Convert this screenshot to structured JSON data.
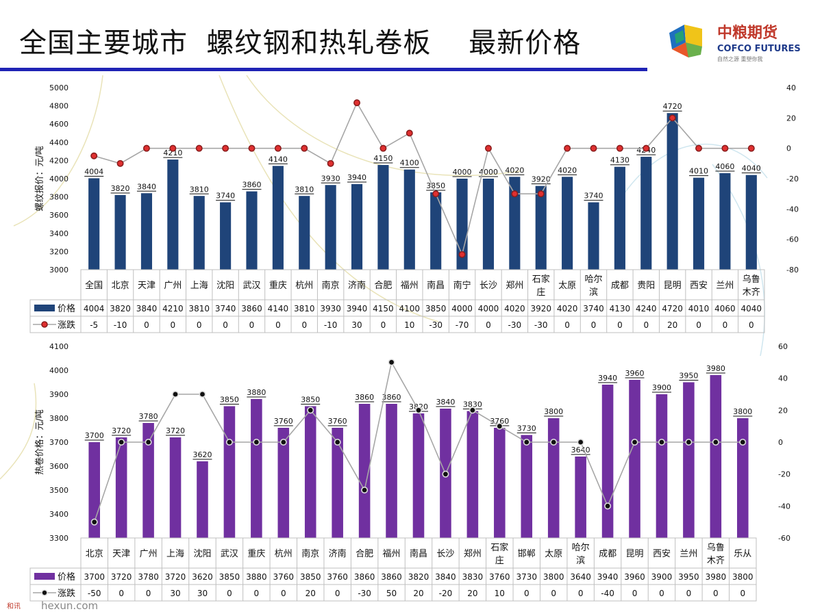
{
  "page": {
    "title": "全国主要城市  螺纹钢和热轧卷板    最新价格",
    "logo_cn": "中粮期货",
    "logo_en": "COFCO FUTURES",
    "logo_slogan": "自然之源  重塑你我",
    "footer_watermark": "hexun.com",
    "footer_brand": "和讯"
  },
  "colors": {
    "title_rule": "#1f23b5",
    "rebar_bar": "#1f4479",
    "hrc_bar": "#7030a0",
    "line": "#a6a6a6",
    "rebar_marker": "#e03030",
    "hrc_marker": "#111111"
  },
  "chart_data": [
    {
      "type": "bar",
      "title": "螺纹钢",
      "ylabel": "螺纹报价：元/吨",
      "ylim": [
        3000,
        5000
      ],
      "yticks": [
        3000,
        3200,
        3400,
        3600,
        3800,
        4000,
        4200,
        4400,
        4600,
        4800,
        5000
      ],
      "y2lim": [
        -80,
        40
      ],
      "y2ticks": [
        -80,
        -60,
        -40,
        -20,
        0,
        20,
        40
      ],
      "categories": [
        "全国",
        "北京",
        "天津",
        "广州",
        "上海",
        "沈阳",
        "武汉",
        "重庆",
        "杭州",
        "南京",
        "济南",
        "合肥",
        "福州",
        "南昌",
        "南宁",
        "长沙",
        "郑州",
        "石家庄",
        "太原",
        "哈尔滨",
        "成都",
        "贵阳",
        "昆明",
        "西安",
        "兰州",
        "乌鲁木齐"
      ],
      "series": [
        {
          "name": "价格",
          "kind": "bar",
          "axis": "left",
          "values": [
            4004,
            3820,
            3840,
            4210,
            3810,
            3740,
            3860,
            4140,
            3810,
            3930,
            3940,
            4150,
            4100,
            3850,
            4000,
            4000,
            4020,
            3920,
            4020,
            3740,
            4130,
            4240,
            4720,
            4010,
            4060,
            4040
          ]
        },
        {
          "name": "涨跌",
          "kind": "line",
          "axis": "right",
          "values": [
            -5,
            -10,
            0,
            0,
            0,
            0,
            0,
            0,
            0,
            -10,
            30,
            0,
            10,
            -30,
            -70,
            0,
            -30,
            -30,
            0,
            0,
            0,
            0,
            20,
            0,
            0,
            0
          ]
        }
      ]
    },
    {
      "type": "bar",
      "title": "热轧卷板",
      "ylabel": "热卷价格：元/吨",
      "ylim": [
        3300,
        4100
      ],
      "yticks": [
        3300,
        3400,
        3500,
        3600,
        3700,
        3800,
        3900,
        4000,
        4100
      ],
      "y2lim": [
        -60,
        60
      ],
      "y2ticks": [
        -60,
        -40,
        -20,
        0,
        20,
        40,
        60
      ],
      "categories": [
        "北京",
        "天津",
        "广州",
        "上海",
        "沈阳",
        "武汉",
        "重庆",
        "杭州",
        "南京",
        "济南",
        "合肥",
        "福州",
        "南昌",
        "长沙",
        "郑州",
        "石家庄",
        "邯郸",
        "太原",
        "哈尔滨",
        "成都",
        "昆明",
        "西安",
        "兰州",
        "乌鲁木齐",
        "乐从"
      ],
      "series": [
        {
          "name": "价格",
          "kind": "bar",
          "axis": "left",
          "values": [
            3700,
            3720,
            3780,
            3720,
            3620,
            3850,
            3880,
            3760,
            3850,
            3760,
            3860,
            3860,
            3820,
            3840,
            3830,
            3760,
            3730,
            3800,
            3640,
            3940,
            3960,
            3900,
            3950,
            3980,
            3800
          ]
        },
        {
          "name": "涨跌",
          "kind": "line",
          "axis": "right",
          "values": [
            -50,
            0,
            0,
            30,
            30,
            0,
            0,
            0,
            20,
            0,
            -30,
            50,
            20,
            -20,
            20,
            10,
            0,
            0,
            0,
            -40,
            0,
            0,
            0,
            0,
            0
          ]
        }
      ]
    }
  ]
}
